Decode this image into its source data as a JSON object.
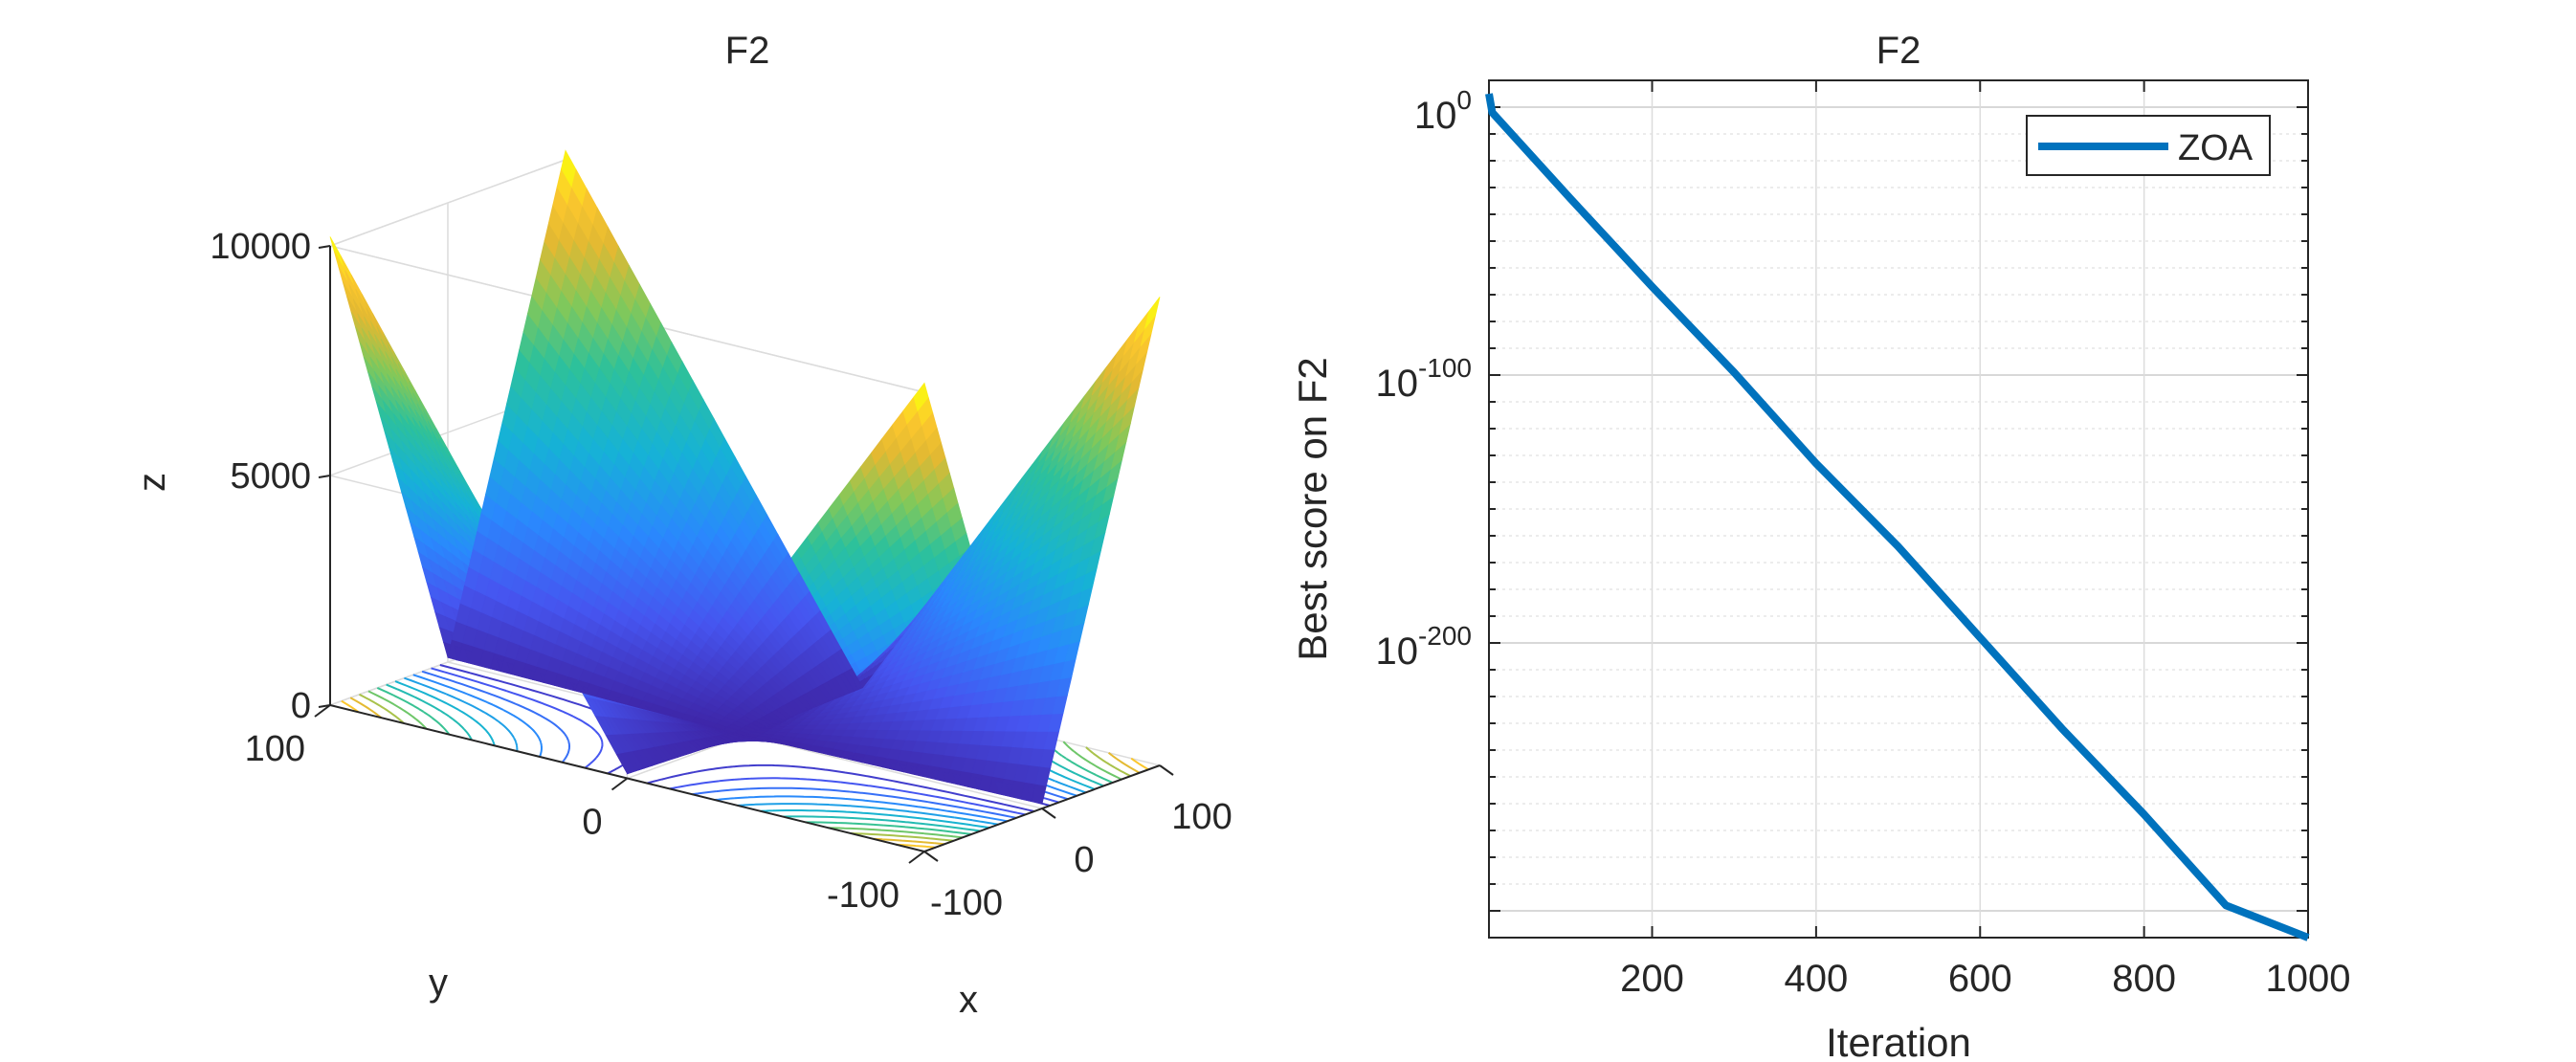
{
  "chart_data": [
    {
      "type": "surface",
      "title": "F2",
      "xlabel": "x",
      "ylabel": "y",
      "zlabel": "z",
      "xlim": [
        -100,
        100
      ],
      "ylim": [
        -100,
        100
      ],
      "zlim": [
        0,
        10000
      ],
      "xticks": [
        "-100",
        "0",
        "100"
      ],
      "yticks": [
        "-100",
        "0",
        "100"
      ],
      "zticks": [
        "0",
        "5000",
        "10000"
      ],
      "function": "|x| + |y| + |x*y|",
      "colormap": "parula",
      "contour_levels": 12,
      "grid": true
    },
    {
      "type": "line",
      "title": "F2",
      "xlabel": "Iteration",
      "ylabel": "Best score on F2",
      "xlim": [
        1,
        1000
      ],
      "ylog_exponent_range": [
        -310,
        10
      ],
      "yscale": "log",
      "xticks": [
        "200",
        "400",
        "600",
        "800",
        "1000"
      ],
      "yticks": [
        {
          "base": "10",
          "exp": "0"
        },
        {
          "base": "10",
          "exp": "-100"
        },
        {
          "base": "10",
          "exp": "-200"
        }
      ],
      "grid": true,
      "legend_position": "top-right",
      "series": [
        {
          "name": "ZOA",
          "color": "#0072BD",
          "x": [
            1,
            5,
            100,
            200,
            300,
            400,
            500,
            600,
            700,
            800,
            900,
            1000
          ],
          "log10_y": [
            5,
            -2,
            -34,
            -67,
            -99,
            -133,
            -164,
            -198,
            -232,
            -264,
            -298,
            -330
          ]
        }
      ]
    }
  ]
}
